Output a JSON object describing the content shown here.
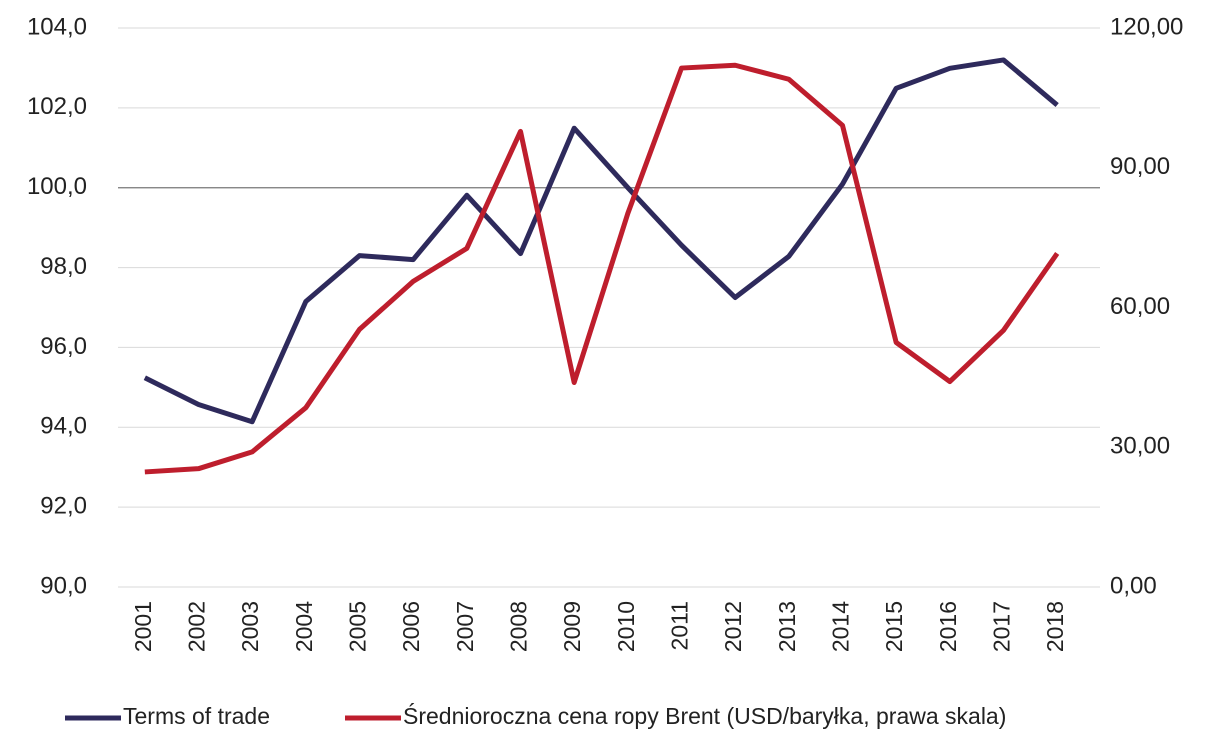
{
  "chart_data": {
    "type": "line",
    "categories": [
      "2001",
      "2002",
      "2003",
      "2004",
      "2005",
      "2006",
      "2007",
      "2008",
      "2009",
      "2010",
      "2011",
      "2012",
      "2013",
      "2014",
      "2015",
      "2016",
      "2017",
      "2018"
    ],
    "series": [
      {
        "name": "Terms of trade",
        "color": "#2e2a5c",
        "values": [
          95.24,
          94.57,
          94.14,
          97.15,
          98.3,
          98.2,
          99.81,
          98.35,
          101.49,
          100.0,
          98.56,
          97.25,
          98.28,
          100.09,
          102.49,
          102.99,
          103.2,
          102.07
        ]
      },
      {
        "name": "Średnioroczna cena ropy Brent (USD/baryłka, prawa skala)",
        "color": "#be1e2d",
        "axis": "y2",
        "values": [
          24.7,
          25.4,
          29.0,
          38.5,
          55.3,
          65.6,
          72.7,
          97.8,
          43.9,
          80.2,
          111.4,
          112.0,
          109.0,
          99.1,
          52.5,
          44.1,
          55.1,
          71.6
        ]
      }
    ],
    "ylim": [
      90,
      104
    ],
    "yticks": [
      {
        "value": 90,
        "label": "90,0"
      },
      {
        "value": 92,
        "label": "92,0"
      },
      {
        "value": 94,
        "label": "94,0"
      },
      {
        "value": 96,
        "label": "96,0"
      },
      {
        "value": 98,
        "label": "98,0"
      },
      {
        "value": 100,
        "label": "100,0"
      },
      {
        "value": 102,
        "label": "102,0"
      },
      {
        "value": 104,
        "label": "104,0"
      }
    ],
    "y2lim": [
      0,
      120
    ],
    "y2ticks": [
      {
        "value": 0,
        "label": "0,00"
      },
      {
        "value": 30,
        "label": "30,00"
      },
      {
        "value": 60,
        "label": "60,00"
      },
      {
        "value": 90,
        "label": "90,00"
      },
      {
        "value": 120,
        "label": "120,00"
      }
    ],
    "grid": true,
    "reference_line": 100,
    "legend": "bottom"
  }
}
